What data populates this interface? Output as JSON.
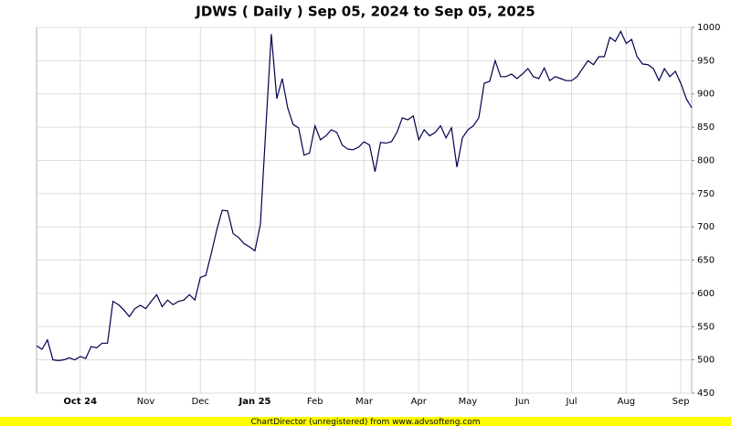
{
  "chart_data": {
    "type": "line",
    "title": "JDWS ( Daily ) Sep 05, 2024 to Sep 05, 2025",
    "footer": "ChartDirector (unregistered) from www.advsofteng.com",
    "categories": [
      null,
      null,
      null,
      null,
      null,
      null,
      null,
      null,
      "Oct 24",
      null,
      null,
      null,
      null,
      null,
      null,
      null,
      null,
      null,
      null,
      null,
      "Nov",
      null,
      null,
      null,
      null,
      null,
      null,
      null,
      null,
      null,
      "Dec",
      null,
      null,
      null,
      null,
      null,
      null,
      null,
      null,
      null,
      "Jan 25",
      null,
      null,
      null,
      null,
      null,
      null,
      null,
      null,
      null,
      null,
      "Feb",
      null,
      null,
      null,
      null,
      null,
      null,
      null,
      null,
      "Mar",
      null,
      null,
      null,
      null,
      null,
      null,
      null,
      null,
      null,
      "Apr",
      null,
      null,
      null,
      null,
      null,
      null,
      null,
      null,
      "May",
      null,
      null,
      null,
      null,
      null,
      null,
      null,
      null,
      null,
      "Jun",
      null,
      null,
      null,
      null,
      null,
      null,
      null,
      null,
      "Jul",
      null,
      null,
      null,
      null,
      null,
      null,
      null,
      null,
      null,
      "Aug",
      null,
      null,
      null,
      null,
      null,
      null,
      null,
      null,
      null,
      "Sep",
      null,
      null
    ],
    "series": [
      {
        "name": "JDWS",
        "color": "#000050",
        "values": [
          521,
          516,
          530,
          500,
          499,
          500,
          503,
          500,
          505,
          502,
          520,
          518,
          525,
          525,
          588,
          583,
          575,
          565,
          577,
          582,
          577,
          588,
          598,
          580,
          590,
          583,
          588,
          590,
          598,
          590,
          624,
          627,
          660,
          695,
          725,
          724,
          690,
          684,
          675,
          670,
          664,
          704,
          849,
          990,
          893,
          923,
          879,
          854,
          849,
          808,
          811,
          852,
          831,
          837,
          846,
          842,
          823,
          817,
          816,
          820,
          828,
          823,
          783,
          827,
          826,
          828,
          842,
          864,
          861,
          867,
          831,
          846,
          837,
          842,
          852,
          834,
          849,
          790,
          834,
          846,
          852,
          864,
          916,
          919,
          950,
          926,
          926,
          930,
          923,
          930,
          938,
          926,
          923,
          939,
          920,
          926,
          923,
          920,
          920,
          926,
          938,
          950,
          944,
          956,
          956,
          985,
          979,
          994,
          976,
          982,
          956,
          945,
          944,
          938,
          920,
          938,
          926,
          934,
          916,
          893,
          879
        ]
      }
    ],
    "ylim": [
      450,
      1000
    ],
    "yticks": [
      450,
      500,
      550,
      600,
      650,
      700,
      750,
      800,
      850,
      900,
      950,
      1000
    ],
    "grid": true
  }
}
